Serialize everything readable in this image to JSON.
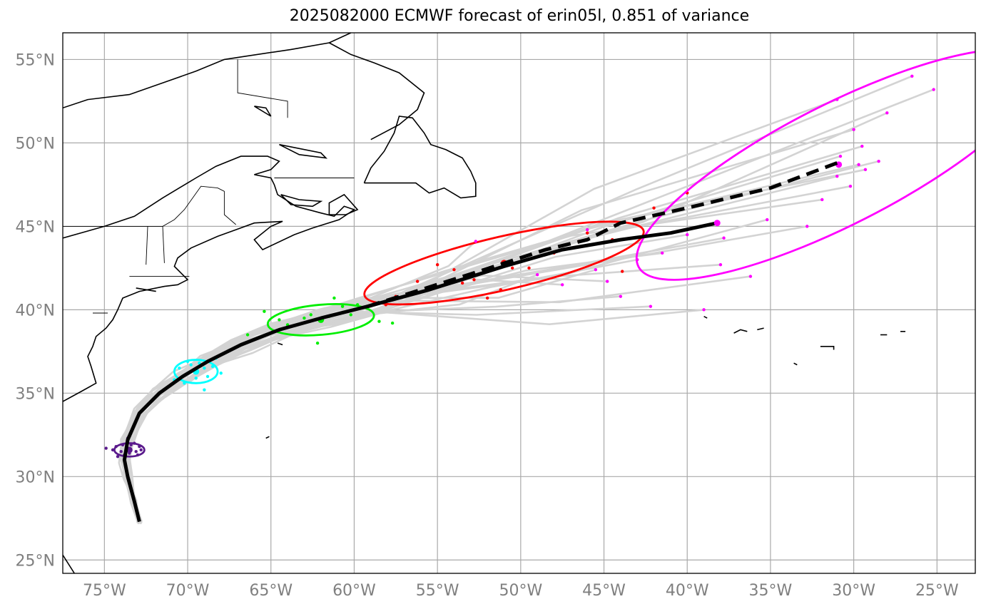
{
  "title": "2025082000 ECMWF forecast of erin05l, 0.851 of variance",
  "map": {
    "extent": {
      "lon": [
        -77.5,
        -22.7
      ],
      "lat": [
        24.2,
        56.6
      ]
    },
    "colors": {
      "ensemble": "#d3d3d3",
      "mean_track": "#000000",
      "coast": "#000000",
      "grid": "#a9a9a9",
      "ticks": "#7f7f7f"
    },
    "lon_ticks": [
      {
        "value": -75,
        "label": "75°W"
      },
      {
        "value": -70,
        "label": "70°W"
      },
      {
        "value": -65,
        "label": "65°W"
      },
      {
        "value": -60,
        "label": "60°W"
      },
      {
        "value": -55,
        "label": "55°W"
      },
      {
        "value": -50,
        "label": "50°W"
      },
      {
        "value": -45,
        "label": "45°W"
      },
      {
        "value": -40,
        "label": "40°W"
      },
      {
        "value": -35,
        "label": "35°W"
      },
      {
        "value": -30,
        "label": "30°W"
      },
      {
        "value": -25,
        "label": "25°W"
      }
    ],
    "lat_ticks": [
      {
        "value": 25,
        "label": "25°N"
      },
      {
        "value": 30,
        "label": "30°N"
      },
      {
        "value": 35,
        "label": "35°N"
      },
      {
        "value": 40,
        "label": "40°N"
      },
      {
        "value": 45,
        "label": "45°N"
      },
      {
        "value": 50,
        "label": "50°N"
      },
      {
        "value": 55,
        "label": "55°N"
      }
    ],
    "mean_track": [
      [
        -72.9,
        27.3
      ],
      [
        -73.2,
        28.5
      ],
      [
        -73.6,
        30.0
      ],
      [
        -73.8,
        31.0
      ],
      [
        -73.6,
        32.2
      ],
      [
        -72.9,
        33.8
      ],
      [
        -71.7,
        35.0
      ],
      [
        -70.3,
        36.0
      ],
      [
        -68.8,
        36.9
      ],
      [
        -66.8,
        37.9
      ],
      [
        -64.5,
        38.8
      ],
      [
        -62.0,
        39.5
      ],
      [
        -59.2,
        40.2
      ],
      [
        -55.5,
        41.2
      ],
      [
        -51.0,
        42.6
      ],
      [
        -47.5,
        43.6
      ],
      [
        -44.0,
        44.2
      ],
      [
        -41.0,
        44.6
      ],
      [
        -38.2,
        45.2
      ]
    ],
    "control_track": [
      [
        -59.2,
        40.2
      ],
      [
        -56.0,
        41.2
      ],
      [
        -52.5,
        42.3
      ],
      [
        -48.5,
        43.6
      ],
      [
        -46.0,
        44.2
      ],
      [
        -44.0,
        45.2
      ],
      [
        -40.0,
        46.1
      ],
      [
        -35.0,
        47.3
      ],
      [
        -31.0,
        48.8
      ]
    ],
    "time_groups": [
      {
        "color": "#5a1a8c",
        "center": [
          -73.5,
          31.6
        ],
        "ellipse": {
          "rx": 0.9,
          "ry": 0.4,
          "angle": 0
        },
        "points": [
          [
            -73.6,
            31.7
          ],
          [
            -74.9,
            31.7
          ],
          [
            -74.2,
            31.2
          ],
          [
            -72.8,
            31.6
          ],
          [
            -73.9,
            31.9
          ],
          [
            -73.1,
            31.5
          ],
          [
            -74.0,
            31.5
          ],
          [
            -73.4,
            31.9
          ],
          [
            -73.5,
            31.4
          ],
          [
            -73.8,
            31.3
          ],
          [
            -72.9,
            31.8
          ],
          [
            -73.2,
            32.0
          ],
          [
            -74.3,
            31.8
          ],
          [
            -73.0,
            31.3
          ],
          [
            -73.6,
            32.3
          ],
          [
            -74.5,
            31.6
          ]
        ]
      },
      {
        "color": "#00ffff",
        "center": [
          -69.5,
          36.3
        ],
        "ellipse": {
          "rx": 1.3,
          "ry": 0.7,
          "angle": 0
        },
        "points": [
          [
            -69.0,
            36.5
          ],
          [
            -68.5,
            36.6
          ],
          [
            -70.8,
            35.8
          ],
          [
            -70.0,
            36.2
          ],
          [
            -69.5,
            35.9
          ],
          [
            -69.3,
            36.8
          ],
          [
            -68.0,
            36.2
          ],
          [
            -69.0,
            35.2
          ],
          [
            -70.5,
            36.5
          ],
          [
            -69.8,
            36.7
          ],
          [
            -68.8,
            36.0
          ],
          [
            -70.2,
            35.6
          ],
          [
            -69.6,
            36.3
          ],
          [
            -68.3,
            37.1
          ],
          [
            -70.0,
            36.9
          ]
        ]
      },
      {
        "color": "#00ee00",
        "center": [
          -62.0,
          39.4
        ],
        "ellipse": {
          "rx": 3.2,
          "ry": 0.9,
          "angle": 5
        },
        "points": [
          [
            -65.4,
            39.9
          ],
          [
            -64.0,
            39.1
          ],
          [
            -63.0,
            39.5
          ],
          [
            -62.0,
            39.4
          ],
          [
            -61.5,
            39.6
          ],
          [
            -60.7,
            40.2
          ],
          [
            -59.8,
            40.3
          ],
          [
            -61.2,
            40.7
          ],
          [
            -62.2,
            38.0
          ],
          [
            -63.8,
            39.0
          ],
          [
            -66.4,
            38.5
          ],
          [
            -58.5,
            39.3
          ],
          [
            -57.7,
            39.2
          ],
          [
            -60.2,
            39.7
          ],
          [
            -62.6,
            39.7
          ],
          [
            -64.5,
            39.4
          ]
        ]
      },
      {
        "color": "#ff0000",
        "center": [
          -51.0,
          42.8
        ],
        "ellipse": {
          "rx": 8.6,
          "ry": 1.6,
          "angle": 13
        },
        "points": [
          [
            -55.0,
            42.7
          ],
          [
            -53.5,
            41.6
          ],
          [
            -52.8,
            41.8
          ],
          [
            -50.5,
            42.5
          ],
          [
            -49.5,
            42.5
          ],
          [
            -48.0,
            43.4
          ],
          [
            -46.5,
            44.1
          ],
          [
            -46.0,
            44.6
          ],
          [
            -44.5,
            44.2
          ],
          [
            -43.9,
            42.3
          ],
          [
            -42.0,
            46.1
          ],
          [
            -40.0,
            47.0
          ],
          [
            -52.0,
            40.7
          ],
          [
            -56.2,
            41.7
          ],
          [
            -57.5,
            40.8
          ],
          [
            -58.1,
            40.3
          ],
          [
            -54.0,
            42.4
          ],
          [
            -51.2,
            41.2
          ]
        ]
      },
      {
        "color": "#ff00ff",
        "center": [
          -30.9,
          48.7
        ],
        "ellipse": {
          "rx": 13.5,
          "ry": 3.6,
          "angle": 27
        },
        "points": [
          [
            -26.5,
            54.0
          ],
          [
            -25.2,
            53.2
          ],
          [
            -31.0,
            52.6
          ],
          [
            -28.0,
            51.8
          ],
          [
            -30.0,
            50.8
          ],
          [
            -29.5,
            49.8
          ],
          [
            -31.0,
            48.0
          ],
          [
            -35.2,
            45.4
          ],
          [
            -32.8,
            45.0
          ],
          [
            -36.2,
            42.0
          ],
          [
            -39.0,
            40.0
          ],
          [
            -42.2,
            40.2
          ],
          [
            -44.0,
            40.8
          ],
          [
            -45.5,
            42.4
          ],
          [
            -47.5,
            41.5
          ],
          [
            -38.0,
            42.7
          ],
          [
            -40.0,
            44.5
          ],
          [
            -43.0,
            43.0
          ],
          [
            -41.5,
            43.4
          ],
          [
            -28.5,
            48.9
          ],
          [
            -29.3,
            48.4
          ],
          [
            -30.2,
            47.4
          ],
          [
            -37.8,
            44.3
          ],
          [
            -46.0,
            44.8
          ],
          [
            -44.8,
            41.7
          ],
          [
            -49.0,
            42.1
          ],
          [
            -52.7,
            44.1
          ],
          [
            -31.9,
            46.6
          ],
          [
            -29.7,
            48.7
          ],
          [
            -30.8,
            49.2
          ]
        ]
      }
    ]
  }
}
